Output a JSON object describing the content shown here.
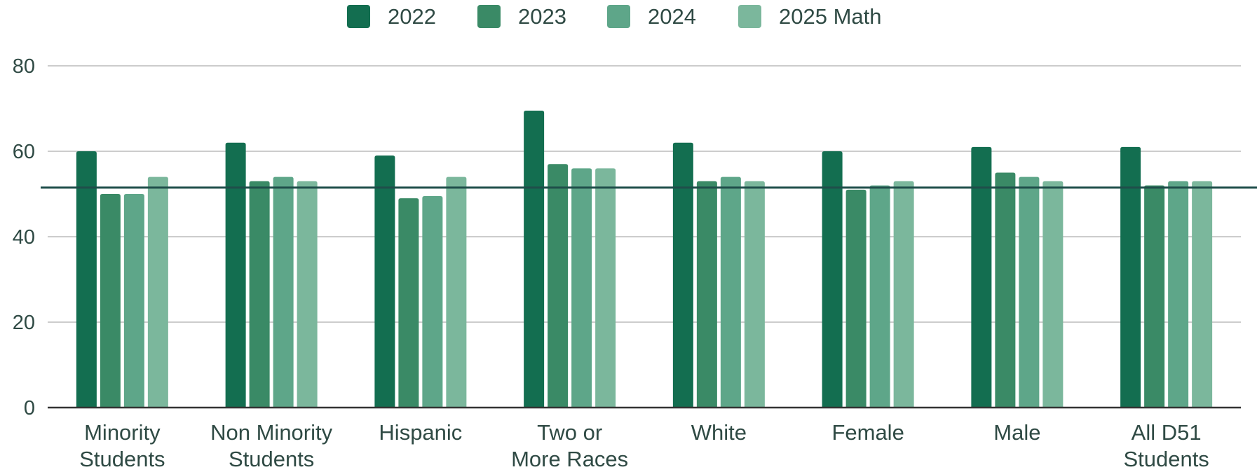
{
  "chart_data": {
    "type": "bar",
    "title": "",
    "xlabel": "",
    "ylabel": "",
    "ylim": [
      0,
      80
    ],
    "yticks": [
      0,
      20,
      40,
      60,
      80
    ],
    "grid": true,
    "legend_position": "top-center",
    "categories": [
      [
        "Minority",
        "Students"
      ],
      [
        "Non Minority",
        "Students"
      ],
      [
        "Hispanic"
      ],
      [
        "Two or",
        "More Races"
      ],
      [
        "White"
      ],
      [
        "Female"
      ],
      [
        "Male"
      ],
      [
        "All D51",
        "Students"
      ]
    ],
    "series": [
      {
        "name": "2022",
        "color": "#136e50",
        "values": [
          60,
          62,
          59,
          69.5,
          62,
          60,
          61,
          61
        ]
      },
      {
        "name": "2023",
        "color": "#3a8a66",
        "values": [
          50,
          53,
          49,
          57,
          53,
          51,
          55,
          52
        ]
      },
      {
        "name": "2024",
        "color": "#5ea689",
        "values": [
          50,
          54,
          49.5,
          56,
          54,
          52,
          54,
          53
        ]
      },
      {
        "name": "2025 Math",
        "color": "#7bb79c",
        "values": [
          54,
          53,
          54,
          56,
          53,
          53,
          53,
          53
        ]
      }
    ],
    "reference_line": {
      "value": 51.5,
      "color": "#1f4e4a"
    },
    "colors": {
      "grid": "#cccccc",
      "axis": "#333333",
      "text": "#2f4a44"
    }
  }
}
